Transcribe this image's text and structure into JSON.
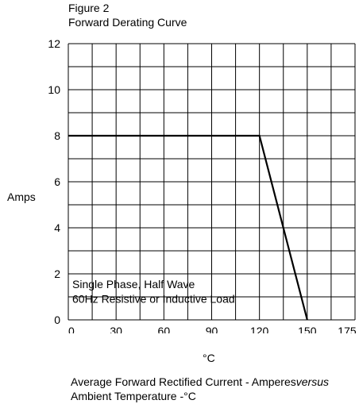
{
  "figure_label": "Figure 2",
  "chart_data": {
    "type": "line",
    "title": "Forward Derating Curve",
    "ylabel": "Amps",
    "xlabel": "°C",
    "x_ticks": [
      "0",
      "30",
      "60",
      "90",
      "120",
      "150",
      "175"
    ],
    "y_ticks": [
      "0",
      "2",
      "4",
      "6",
      "8",
      "10",
      "12"
    ],
    "xlim": [
      0,
      180
    ],
    "ylim": [
      0,
      12
    ],
    "grid": true,
    "series": [
      {
        "x": [
          0,
          120,
          150
        ],
        "y": [
          8,
          8,
          0
        ]
      }
    ],
    "annotation_lines": [
      "Single Phase, Half Wave",
      "60Hz Resistive or Inductive Load"
    ],
    "color": "#000000"
  },
  "caption": {
    "line1_main": "Average Forward Rectified Current  -  Amperes",
    "line1_emph": "versus",
    "line2": "Ambient Temperature  -°C"
  }
}
